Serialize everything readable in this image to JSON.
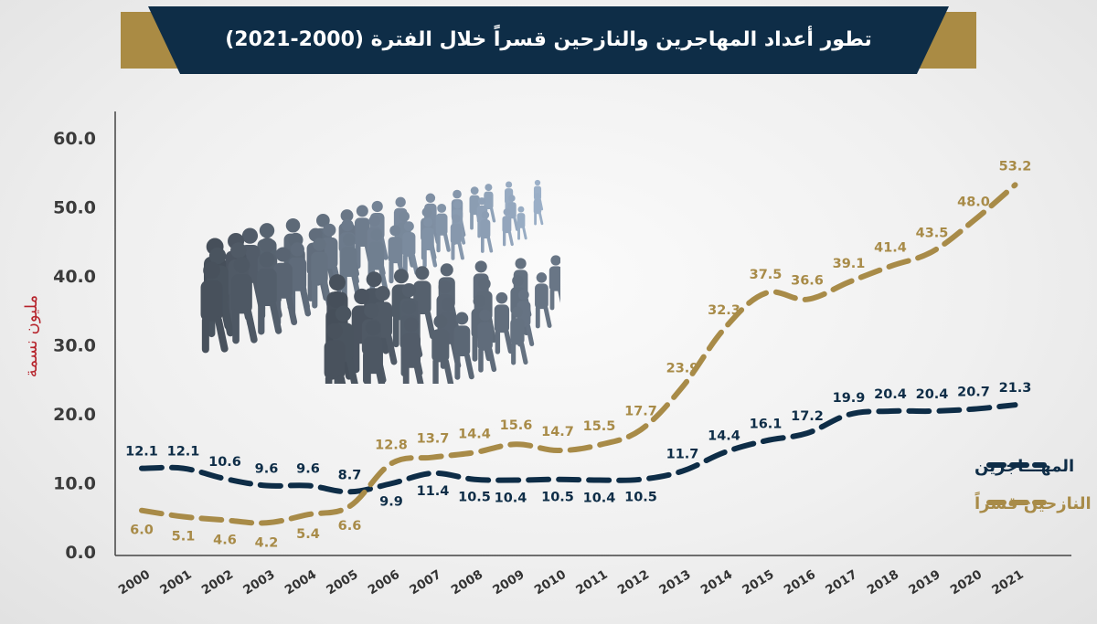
{
  "title": "تطور أعداد المهاجرين والنازحين قسراً خلال الفترة (2000-2021)",
  "chart_data": {
    "type": "line",
    "title": "تطور أعداد المهاجرين والنازحين قسراً خلال الفترة (2000-2021)",
    "ylabel": "مليون نسمة",
    "xlabel": "",
    "ylim": [
      0,
      60
    ],
    "yticks": [
      "0.0",
      "10.0",
      "20.0",
      "30.0",
      "40.0",
      "50.0",
      "60.0"
    ],
    "grid": false,
    "legend_position": "right",
    "x": [
      "2000",
      "2001",
      "2002",
      "2003",
      "2004",
      "2005",
      "2006",
      "2007",
      "2008",
      "2009",
      "2010",
      "2011",
      "2012",
      "2013",
      "2014",
      "2015",
      "2016",
      "2017",
      "2018",
      "2019",
      "2020",
      "2021"
    ],
    "series": [
      {
        "name": "المهـــاجرين",
        "color": "#0e2d47",
        "values": [
          12.1,
          12.1,
          10.6,
          9.6,
          9.6,
          8.7,
          9.9,
          11.4,
          10.5,
          10.4,
          10.5,
          10.4,
          10.5,
          11.7,
          14.4,
          16.1,
          17.2,
          19.9,
          20.4,
          20.4,
          20.7,
          21.3
        ]
      },
      {
        "name": "النازحين قسراً",
        "color": "#a88b48",
        "values": [
          6.0,
          5.1,
          4.6,
          4.2,
          5.4,
          6.6,
          12.8,
          13.7,
          14.4,
          15.6,
          14.7,
          15.5,
          17.7,
          23.9,
          32.3,
          37.5,
          36.6,
          39.1,
          41.4,
          43.5,
          48.0,
          53.2
        ]
      }
    ]
  },
  "colors": {
    "navy": "#0e2d47",
    "gold": "#a88b48",
    "ylabel": "#b6232b",
    "axis_text": "#3b3b3b"
  },
  "illustration": {
    "icon": "crowd-of-migrants-illustration"
  }
}
